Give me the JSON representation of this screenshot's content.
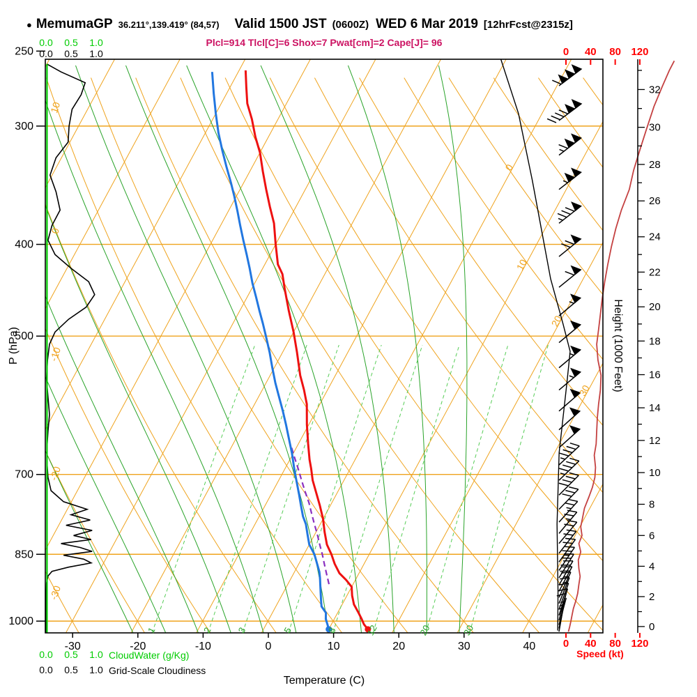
{
  "header": {
    "station_bullet": "●",
    "station_name": "MemumaGP",
    "station_coords": "36.211°,139.419° (84,57)",
    "valid_main": "Valid 1500 JST",
    "valid_z": "(0600Z)",
    "valid_date": "WED 6 Mar 2019",
    "forecast_tag": "[12hrFcst@2315z]",
    "stats_line": "Plcl=914 Tlcl[C]=6 Shox=7 Pwat[cm]=2 Cape[J]= 96"
  },
  "axes": {
    "pressure": {
      "label": "P (hPa)",
      "ticks": [
        250,
        300,
        400,
        500,
        700,
        850,
        1000
      ]
    },
    "temperature": {
      "label": "Temperature (C)",
      "ticks": [
        -30,
        -20,
        -10,
        0,
        10,
        20,
        30,
        40
      ]
    },
    "height": {
      "label": "Height (1000 Feet)",
      "major_ticks": [
        0,
        2,
        4,
        6,
        8,
        10,
        12,
        14,
        16,
        18,
        20,
        22,
        24,
        26,
        28,
        30,
        32
      ]
    },
    "speed": {
      "label": "Speed (kt)",
      "ticks": [
        0,
        40,
        80,
        120
      ]
    },
    "cloudwater_scale": {
      "label": "CloudWater (g/Kg)",
      "ticks": [
        "0.0",
        "0.5",
        "1.0"
      ]
    },
    "cloudiness_scale": {
      "label": "Grid-Scale Cloudiness",
      "ticks": [
        "0.0",
        "0.5",
        "1.0"
      ]
    }
  },
  "colors": {
    "grid_orange": "#efa31d",
    "green_solid": "#29a329",
    "green_dashed": "#55cc55",
    "green_bright": "#00cc00",
    "temp_red": "#ee1111",
    "dew_blue": "#2277e0",
    "parcel_purple": "#8a2fc0",
    "speed_crimson": "#c44141",
    "speed_label_red": "#ff0000",
    "stats_magenta": "#cc1262",
    "black": "#000000"
  },
  "chart_data": {
    "type": "skewt-logp-sounding",
    "title": "MemumaGP 36.211°,139.419° (84,57) Valid 1500 JST (0600Z) WED 6 Mar 2019 [12hrFcst@2315z]",
    "pressure_range_hpa": [
      255,
      1029
    ],
    "isobars": [
      300,
      400,
      500,
      700,
      850,
      1000
    ],
    "isotherms": {
      "min": -90,
      "max": 60,
      "step": 10,
      "labels": [
        0,
        10,
        20,
        30
      ]
    },
    "dry_adiabats": {
      "min": -40,
      "max": 140,
      "step": 10,
      "labels": [
        10,
        0,
        -10,
        -20,
        -30
      ]
    },
    "moist_adiabats": [
      -20,
      -15,
      -10,
      -5,
      0,
      5,
      10,
      15,
      20,
      25,
      30
    ],
    "mixing_ratio_lines": [
      1,
      2,
      3,
      5,
      8,
      12,
      20,
      30
    ],
    "temperature_profile": [
      [
        1020,
        16
      ],
      [
        1008,
        15
      ],
      [
        995,
        14.2
      ],
      [
        980,
        13.2
      ],
      [
        960,
        11.8
      ],
      [
        940,
        10.8
      ],
      [
        920,
        10
      ],
      [
        905,
        8.6
      ],
      [
        890,
        7
      ],
      [
        870,
        5.5
      ],
      [
        850,
        4.2
      ],
      [
        830,
        2.7
      ],
      [
        805,
        1.3
      ],
      [
        780,
        0
      ],
      [
        755,
        -1.6
      ],
      [
        735,
        -3
      ],
      [
        710,
        -4.8
      ],
      [
        690,
        -6
      ],
      [
        675,
        -7
      ],
      [
        650,
        -8.5
      ],
      [
        620,
        -10.3
      ],
      [
        590,
        -12
      ],
      [
        570,
        -13.6
      ],
      [
        550,
        -15.4
      ],
      [
        520,
        -17.8
      ],
      [
        495,
        -20
      ],
      [
        470,
        -22.5
      ],
      [
        445,
        -25
      ],
      [
        430,
        -26.5
      ],
      [
        420,
        -28
      ],
      [
        400,
        -30
      ],
      [
        380,
        -32
      ],
      [
        365,
        -34
      ],
      [
        350,
        -36
      ],
      [
        335,
        -38
      ],
      [
        320,
        -40
      ],
      [
        308,
        -42
      ],
      [
        295,
        -44
      ],
      [
        284,
        -46
      ],
      [
        273,
        -47.5
      ],
      [
        262,
        -49
      ]
    ],
    "dewpoint_profile": [
      [
        1020,
        10
      ],
      [
        1008,
        9.4
      ],
      [
        995,
        8.7
      ],
      [
        980,
        8.2
      ],
      [
        965,
        7
      ],
      [
        950,
        6.4
      ],
      [
        935,
        5.8
      ],
      [
        915,
        5
      ],
      [
        900,
        4.4
      ],
      [
        887,
        3.8
      ],
      [
        870,
        2.8
      ],
      [
        850,
        1.6
      ],
      [
        830,
        0
      ],
      [
        810,
        -1.1
      ],
      [
        790,
        -2.2
      ],
      [
        775,
        -3.3
      ],
      [
        755,
        -4.5
      ],
      [
        735,
        -5.7
      ],
      [
        710,
        -7.3
      ],
      [
        690,
        -8.6
      ],
      [
        665,
        -10.2
      ],
      [
        640,
        -12
      ],
      [
        620,
        -13.5
      ],
      [
        600,
        -15.1
      ],
      [
        578,
        -17
      ],
      [
        560,
        -18.6
      ],
      [
        540,
        -20.3
      ],
      [
        520,
        -22
      ],
      [
        500,
        -23.9
      ],
      [
        485,
        -25.4
      ],
      [
        470,
        -27
      ],
      [
        455,
        -28.6
      ],
      [
        440,
        -30.3
      ],
      [
        424,
        -32
      ],
      [
        410,
        -33.6
      ],
      [
        396,
        -35.3
      ],
      [
        382,
        -37
      ],
      [
        369,
        -38.6
      ],
      [
        356,
        -40.3
      ],
      [
        344,
        -42
      ],
      [
        331,
        -44
      ],
      [
        318,
        -46
      ],
      [
        305,
        -48
      ],
      [
        291,
        -50
      ],
      [
        277,
        -52
      ],
      [
        263,
        -54
      ]
    ],
    "parcel_path": [
      [
        914,
        6.3
      ],
      [
        890,
        5
      ],
      [
        870,
        3.9
      ],
      [
        850,
        2.8
      ],
      [
        830,
        1.6
      ],
      [
        810,
        0.4
      ],
      [
        790,
        -0.9
      ],
      [
        770,
        -2.2
      ],
      [
        750,
        -3.5
      ],
      [
        730,
        -5
      ],
      [
        710,
        -6.5
      ],
      [
        690,
        -8
      ],
      [
        670,
        -9.6
      ],
      [
        655,
        -10.8
      ]
    ],
    "wind_speed_profile": [
      [
        1026,
        4
      ],
      [
        1014,
        6
      ],
      [
        1000,
        8
      ],
      [
        985,
        10
      ],
      [
        970,
        12
      ],
      [
        952,
        16
      ],
      [
        935,
        19
      ],
      [
        915,
        21
      ],
      [
        897,
        23
      ],
      [
        880,
        21
      ],
      [
        862,
        20
      ],
      [
        845,
        24
      ],
      [
        828,
        21
      ],
      [
        812,
        26
      ],
      [
        795,
        24
      ],
      [
        778,
        27
      ],
      [
        760,
        30
      ],
      [
        740,
        37
      ],
      [
        722,
        43
      ],
      [
        705,
        47
      ],
      [
        688,
        48
      ],
      [
        668,
        46
      ],
      [
        650,
        49
      ],
      [
        630,
        50
      ],
      [
        610,
        51
      ],
      [
        590,
        53
      ],
      [
        570,
        56
      ],
      [
        550,
        57
      ],
      [
        530,
        52
      ],
      [
        510,
        50
      ],
      [
        492,
        53
      ],
      [
        474,
        56
      ],
      [
        456,
        59
      ],
      [
        438,
        63
      ],
      [
        420,
        68
      ],
      [
        402,
        74
      ],
      [
        385,
        81
      ],
      [
        368,
        90
      ],
      [
        350,
        103
      ],
      [
        334,
        110
      ],
      [
        318,
        120
      ],
      [
        302,
        131
      ],
      [
        286,
        143
      ],
      [
        272,
        157
      ],
      [
        262,
        168
      ],
      [
        256,
        176
      ]
    ],
    "wind_barbs": [
      [
        1026,
        4,
        190
      ],
      [
        1018,
        5,
        192
      ],
      [
        1009,
        6,
        195
      ],
      [
        998,
        8,
        195
      ],
      [
        986,
        9,
        198
      ],
      [
        972,
        11,
        200
      ],
      [
        958,
        14,
        202
      ],
      [
        944,
        16,
        205
      ],
      [
        930,
        19,
        208
      ],
      [
        916,
        21,
        210
      ],
      [
        900,
        22,
        212
      ],
      [
        884,
        23,
        214
      ],
      [
        866,
        21,
        216
      ],
      [
        848,
        24,
        218
      ],
      [
        828,
        22,
        220
      ],
      [
        808,
        27,
        220
      ],
      [
        786,
        26,
        222
      ],
      [
        762,
        30,
        224
      ],
      [
        736,
        40,
        225
      ],
      [
        710,
        46,
        226
      ],
      [
        684,
        47,
        227
      ],
      [
        656,
        49,
        228
      ],
      [
        628,
        50,
        228
      ],
      [
        600,
        51,
        229
      ],
      [
        570,
        55,
        230
      ],
      [
        540,
        55,
        230
      ],
      [
        508,
        51,
        230
      ],
      [
        476,
        57,
        230
      ],
      [
        444,
        62,
        231
      ],
      [
        412,
        70,
        231
      ],
      [
        380,
        85,
        232
      ],
      [
        350,
        104,
        232
      ],
      [
        322,
        115,
        232
      ],
      [
        296,
        138,
        233
      ],
      [
        272,
        158,
        233
      ]
    ],
    "cloudiness_profile": [
      [
        258,
        0.02
      ],
      [
        263,
        0.3
      ],
      [
        270,
        0.78
      ],
      [
        278,
        0.7
      ],
      [
        288,
        0.52
      ],
      [
        300,
        0.46
      ],
      [
        312,
        0.44
      ],
      [
        324,
        0.2
      ],
      [
        338,
        0.08
      ],
      [
        352,
        0.2
      ],
      [
        368,
        0.28
      ],
      [
        382,
        0.12
      ],
      [
        396,
        0.04
      ],
      [
        410,
        0.18
      ],
      [
        424,
        0.5
      ],
      [
        438,
        0.85
      ],
      [
        452,
        0.97
      ],
      [
        466,
        0.8
      ],
      [
        480,
        0.45
      ],
      [
        495,
        0.18
      ],
      [
        510,
        0.07
      ],
      [
        530,
        0.03
      ],
      [
        555,
        0.01
      ],
      [
        580,
        0.04
      ],
      [
        605,
        0.07
      ],
      [
        630,
        0.04
      ],
      [
        655,
        0.02
      ],
      [
        680,
        0.02
      ],
      [
        705,
        0.04
      ],
      [
        728,
        0.1
      ],
      [
        748,
        0.35
      ],
      [
        762,
        0.82
      ],
      [
        772,
        0.5
      ],
      [
        782,
        0.88
      ],
      [
        792,
        0.4
      ],
      [
        802,
        0.92
      ],
      [
        812,
        0.55
      ],
      [
        820,
        0.9
      ],
      [
        828,
        0.3
      ],
      [
        836,
        0.68
      ],
      [
        844,
        0.92
      ],
      [
        852,
        0.35
      ],
      [
        860,
        0.75
      ],
      [
        868,
        0.9
      ],
      [
        877,
        0.45
      ],
      [
        886,
        0.12
      ],
      [
        896,
        0.04
      ],
      [
        912,
        0.01
      ],
      [
        940,
        0
      ],
      [
        1029,
        0
      ]
    ],
    "cloudwater_profile": [
      [
        258,
        0.02
      ],
      [
        1029,
        0.02
      ]
    ],
    "reference_line": [
      [
        255,
        -10.8
      ],
      [
        291,
        -3.6
      ],
      [
        342,
        4
      ],
      [
        435,
        15
      ],
      [
        485,
        20.6
      ],
      [
        519,
        24
      ],
      [
        558,
        26
      ],
      [
        664,
        30.7
      ],
      [
        790,
        36.3
      ],
      [
        930,
        42
      ],
      [
        1023,
        45.2
      ]
    ]
  }
}
